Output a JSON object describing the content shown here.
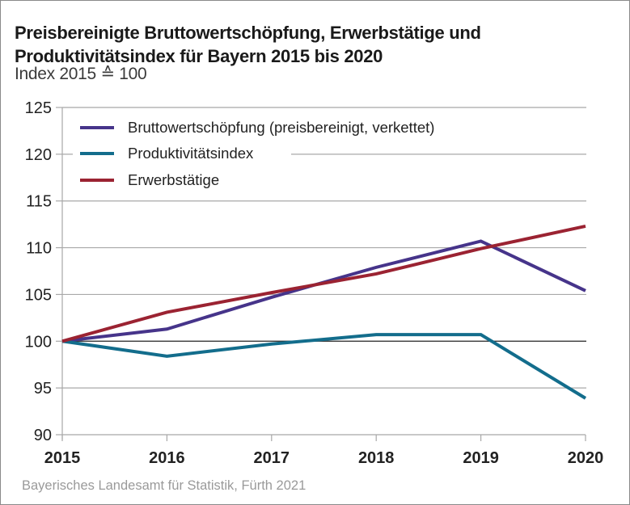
{
  "title_line1": "Preisbereinigte Bruttowertschöpfung, Erwerbstätige und",
  "title_line2": "Produktivitätsindex für Bayern 2015 bis 2020",
  "subtitle": "Index 2015 ≙ 100",
  "source": "Bayerisches Landesamt für Statistik, Fürth 2021",
  "chart_data": {
    "type": "line",
    "title": "Preisbereinigte Bruttowertschöpfung, Erwerbstätige und Produktivitätsindex für Bayern 2015 bis 2020",
    "subtitle": "Index 2015 ≙ 100",
    "xlabel": "",
    "ylabel": "",
    "x": [
      "2015",
      "2016",
      "2017",
      "2018",
      "2019",
      "2020"
    ],
    "ylim": [
      90,
      125
    ],
    "yticks": [
      90,
      95,
      100,
      105,
      110,
      115,
      120,
      125
    ],
    "grid": true,
    "baseline": 100,
    "legend_position": "top-left",
    "series": [
      {
        "name": "Bruttowertschöpfung (preisbereinigt, verkettet)",
        "color": "#46348a",
        "values": [
          100,
          101.3,
          104.7,
          107.9,
          110.7,
          105.4
        ]
      },
      {
        "name": "Produktivitätsindex",
        "color": "#136d8c",
        "values": [
          100,
          98.4,
          99.7,
          100.7,
          100.7,
          93.9
        ]
      },
      {
        "name": "Erwerbstätige",
        "color": "#9b2332",
        "values": [
          100,
          103.1,
          105.2,
          107.2,
          109.9,
          112.3
        ]
      }
    ]
  }
}
